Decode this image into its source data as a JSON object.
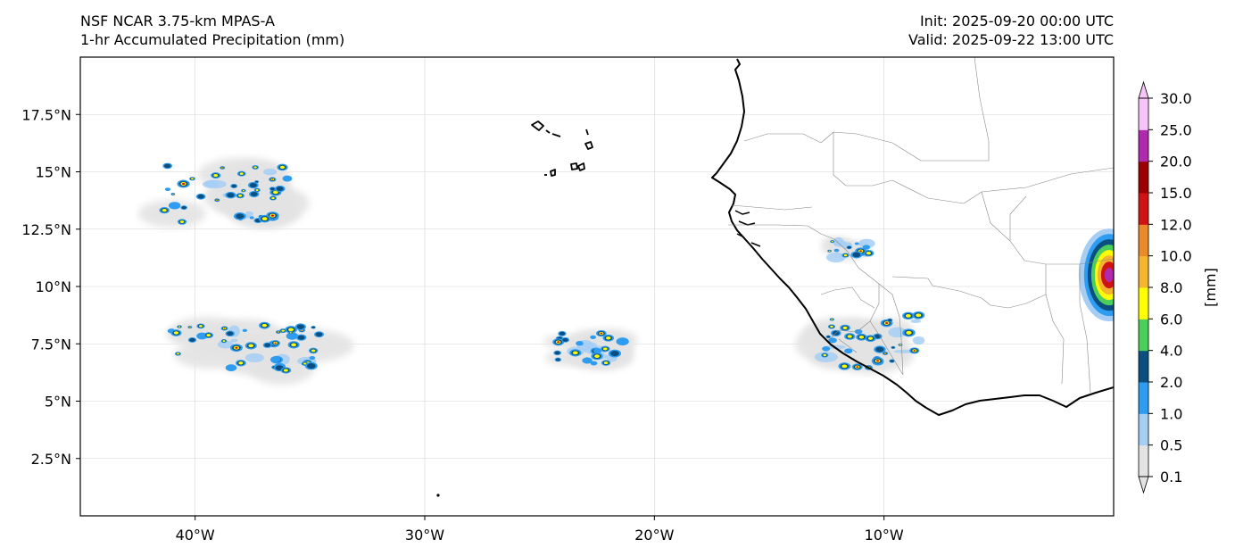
{
  "title": {
    "line1": "NSF NCAR 3.75-km MPAS-A",
    "line2": "1-hr Accumulated Precipitation (mm)",
    "init": "Init: 2025-09-20 00:00 UTC",
    "valid": "Valid: 2025-09-22 13:00 UTC"
  },
  "axes": {
    "lon_range": [
      -45,
      0
    ],
    "lat_range": [
      0,
      20
    ],
    "lon_ticks": [
      {
        "value": -40,
        "label": "40°W"
      },
      {
        "value": -30,
        "label": "30°W"
      },
      {
        "value": -20,
        "label": "20°W"
      },
      {
        "value": -10,
        "label": "10°W"
      }
    ],
    "lat_ticks": [
      {
        "value": 17.5,
        "label": "17.5°N"
      },
      {
        "value": 15,
        "label": "15°N"
      },
      {
        "value": 12.5,
        "label": "12.5°N"
      },
      {
        "value": 10,
        "label": "10°N"
      },
      {
        "value": 7.5,
        "label": "7.5°N"
      },
      {
        "value": 5,
        "label": "5°N"
      },
      {
        "value": 2.5,
        "label": "2.5°N"
      }
    ]
  },
  "colorbar": {
    "label": "[mm]",
    "levels": [
      "0.1",
      "0.5",
      "1.0",
      "2.0",
      "4.0",
      "6.0",
      "8.0",
      "10.0",
      "12.0",
      "15.0",
      "20.0",
      "25.0",
      "30.0"
    ],
    "colors": [
      "#e3e3e3",
      "#a6cef5",
      "#2e9cf0",
      "#0a4f80",
      "#4ccf5a",
      "#ffff00",
      "#f5b52e",
      "#ea8a2a",
      "#d01414",
      "#9c0000",
      "#b02ab0",
      "#f6c4f6"
    ]
  },
  "precip_areas": [
    {
      "name": "north-atlantic-cluster",
      "lon": -38.8,
      "lat": 14.0,
      "extent_lon": 6.3,
      "extent_lat": 2.8
    },
    {
      "name": "itcz-west-band",
      "lon": -37.8,
      "lat": 7.3,
      "extent_lon": 7.2,
      "extent_lat": 2.3
    },
    {
      "name": "mid-atlantic-cells",
      "lon": -22.9,
      "lat": 7.3,
      "extent_lon": 3.6,
      "extent_lat": 1.6
    },
    {
      "name": "guinea-coast-band",
      "lon": -10.5,
      "lat": 7.6,
      "extent_lon": 5.2,
      "extent_lat": 2.6
    },
    {
      "name": "mali-guinea-cells",
      "lon": -11.5,
      "lat": 11.6,
      "extent_lon": 2.0,
      "extent_lat": 1.0
    },
    {
      "name": "east-edge-convection",
      "lon": -0.2,
      "lat": 10.5,
      "extent_lon": 0.4,
      "extent_lat": 1.4
    }
  ]
}
